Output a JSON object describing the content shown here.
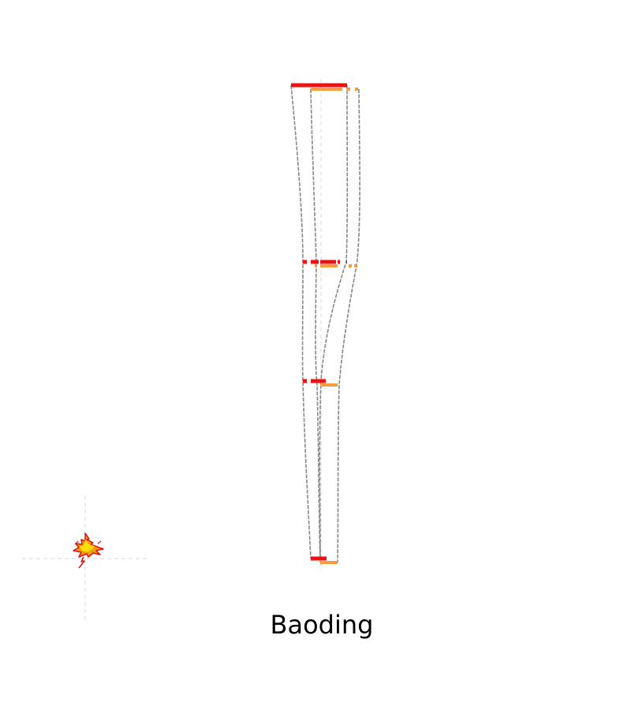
{
  "caption": "Baoding",
  "colors": {
    "outline": "#888888",
    "guide": "#d8d8d8",
    "primary_bar": "#ee1111",
    "secondary_bar": "#f59c3c",
    "logo_yellow": "#ffdd00",
    "logo_orange": "#f39c12",
    "logo_red": "#dd1111"
  },
  "icons": {
    "logo": "flame-logo-icon"
  }
}
